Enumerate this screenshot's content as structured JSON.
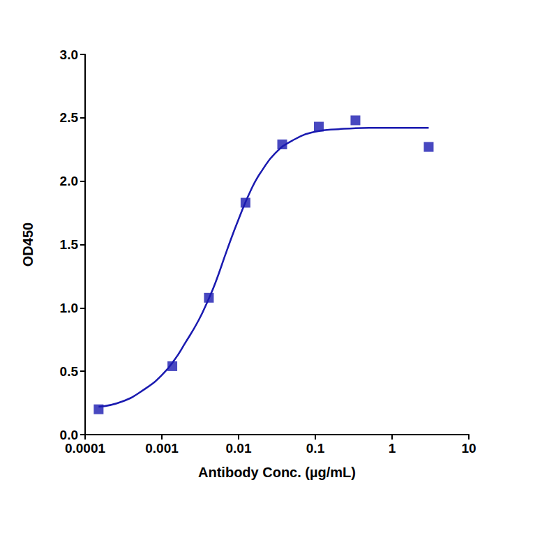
{
  "chart_data": {
    "type": "scatter",
    "x_label": "Antibody Conc. (µg/mL)",
    "y_label": "OD450",
    "log": "x",
    "grid": false,
    "xlim": [
      0.0001,
      10
    ],
    "xticks": [
      0.0001,
      0.001,
      0.01,
      0.1,
      1,
      10
    ],
    "ylim": [
      0,
      3
    ],
    "yticks": [
      {
        "value": 0,
        "label": "0.0"
      },
      0.5,
      {
        "value": 1,
        "label": "1.0"
      },
      1.5,
      {
        "value": 2,
        "label": "2.0"
      },
      2.5,
      {
        "value": 3,
        "label": "3.0"
      }
    ],
    "series": [
      {
        "type": "scatter",
        "marker": "square",
        "color": "#1a1ab0",
        "x": [
          0.00015,
          0.00137,
          0.0041,
          0.0123,
          0.037,
          0.111,
          0.333,
          3
        ],
        "values": [
          0.2,
          0.54,
          1.08,
          1.83,
          2.29,
          2.43,
          2.48,
          2.27
        ]
      },
      {
        "type": "line",
        "line_style": "solid",
        "color": "#1a1ab0",
        "x": [
          0.00015,
          0.0003,
          0.0006,
          0.001,
          0.0015,
          0.002,
          0.003,
          0.004,
          0.005,
          0.007,
          0.01,
          0.015,
          0.02,
          0.03,
          0.05,
          0.1,
          0.2,
          0.5,
          1,
          3
        ],
        "values": [
          0.22,
          0.26,
          0.36,
          0.47,
          0.6,
          0.72,
          0.9,
          1.06,
          1.2,
          1.45,
          1.7,
          1.95,
          2.08,
          2.22,
          2.32,
          2.39,
          2.41,
          2.42,
          2.42,
          2.42
        ]
      }
    ]
  }
}
